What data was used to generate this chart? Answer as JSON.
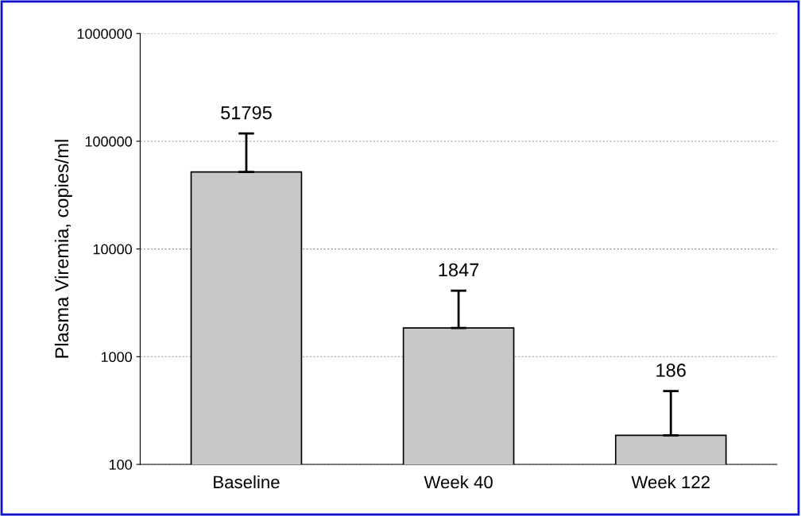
{
  "chart_data": {
    "type": "bar",
    "ylabel": "Plasma Viremia, copies/ml",
    "categories": [
      "Baseline",
      "Week 40",
      "Week 122"
    ],
    "values": [
      51795,
      1847,
      186
    ],
    "errors": [
      [
        51795,
        118000
      ],
      [
        1847,
        4100
      ],
      [
        186,
        480
      ]
    ],
    "color": "#c8c8c8",
    "log": true,
    "ylim": [
      100,
      1000000
    ],
    "yticks": [
      100,
      1000,
      10000,
      100000,
      1000000
    ],
    "grid": "y",
    "data_labels": true
  }
}
